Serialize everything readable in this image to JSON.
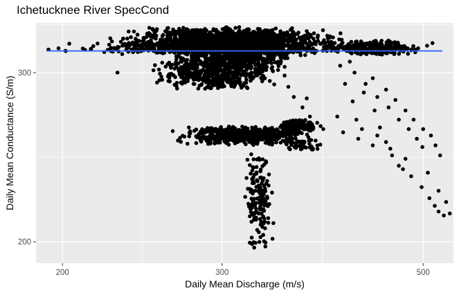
{
  "chart_data": {
    "type": "scatter",
    "title": "Ichetucknee River SpecCond",
    "xlabel": "Daily Mean Discharge (m/s)",
    "ylabel": "Daily Mean Conductance (S/m)",
    "x_scale": "log10",
    "y_scale": "log10",
    "xlim": [
      187,
      540
    ],
    "ylim": [
      190,
      338
    ],
    "x_ticks": [
      200,
      300,
      500
    ],
    "y_ticks": [
      200,
      300
    ],
    "grid": true,
    "background_color": "#EBEBEB",
    "grid_color": "#FFFFFF",
    "point_color": "#000000",
    "trend_line": {
      "color": "#3366FF",
      "points": [
        [
          192,
          316
        ],
        [
          525,
          316
        ]
      ]
    },
    "clusters": [
      {
        "x_range": [
          190,
          460
        ],
        "y_range": [
          313,
          324
        ],
        "n": 700
      },
      {
        "x_range": [
          220,
          420
        ],
        "y_range": [
          316,
          335
        ],
        "n": 900
      },
      {
        "x_range": [
          250,
          380
        ],
        "y_range": [
          300,
          332
        ],
        "n": 900
      },
      {
        "x_range": [
          240,
          360
        ],
        "y_range": [
          288,
          312
        ],
        "n": 450
      },
      {
        "x_range": [
          380,
          510
        ],
        "y_range": [
          313,
          324
        ],
        "n": 300
      },
      {
        "x_range": [
          260,
          395
        ],
        "y_range": [
          252,
          264
        ],
        "n": 550
      },
      {
        "x_range": [
          340,
          390
        ],
        "y_range": [
          260,
          268
        ],
        "n": 120
      },
      {
        "x_range": [
          315,
          345
        ],
        "y_range": [
          195,
          250
        ],
        "n": 160
      },
      {
        "x_range": [
          345,
          395
        ],
        "y_range": [
          248,
          256
        ],
        "n": 40
      }
    ],
    "points": [
      [
        420,
        300
      ],
      [
        432,
        292
      ],
      [
        445,
        283
      ],
      [
        458,
        276
      ],
      [
        470,
        268
      ],
      [
        482,
        262
      ],
      [
        492,
        256
      ],
      [
        499,
        251
      ],
      [
        440,
        296
      ],
      [
        455,
        288
      ],
      [
        466,
        281
      ],
      [
        478,
        274
      ],
      [
        488,
        268
      ],
      [
        500,
        262
      ],
      [
        510,
        258
      ],
      [
        516,
        252
      ],
      [
        522,
        246
      ],
      [
        430,
        286
      ],
      [
        442,
        274
      ],
      [
        448,
        263
      ],
      [
        455,
        254
      ],
      [
        462,
        246
      ],
      [
        470,
        240
      ],
      [
        485,
        234
      ],
      [
        498,
        228
      ],
      [
        508,
        222
      ],
      [
        515,
        218
      ],
      [
        520,
        215
      ],
      [
        527,
        213
      ],
      [
        535,
        214
      ],
      [
        530,
        220
      ],
      [
        520,
        226
      ],
      [
        410,
        292
      ],
      [
        418,
        280
      ],
      [
        422,
        268
      ],
      [
        428,
        262
      ],
      [
        424,
        256
      ],
      [
        402,
        270
      ],
      [
        408,
        260
      ],
      [
        460,
        250
      ],
      [
        478,
        244
      ],
      [
        506,
        236
      ],
      [
        475,
        238
      ],
      [
        440,
        252
      ],
      [
        445,
        258
      ],
      [
        355,
        290
      ],
      [
        360,
        283
      ],
      [
        368,
        276
      ],
      [
        375,
        270
      ],
      [
        382,
        266
      ],
      [
        388,
        262
      ],
      [
        372,
        282
      ],
      [
        230,
        300
      ],
      [
        300,
        294
      ],
      [
        310,
        291
      ],
      [
        320,
        289
      ],
      [
        405,
        305
      ],
      [
        415,
        308
      ],
      [
        198,
        318
      ],
      [
        193,
        317
      ],
      [
        505,
        320
      ],
      [
        512,
        322
      ],
      [
        490,
        315
      ]
    ]
  }
}
